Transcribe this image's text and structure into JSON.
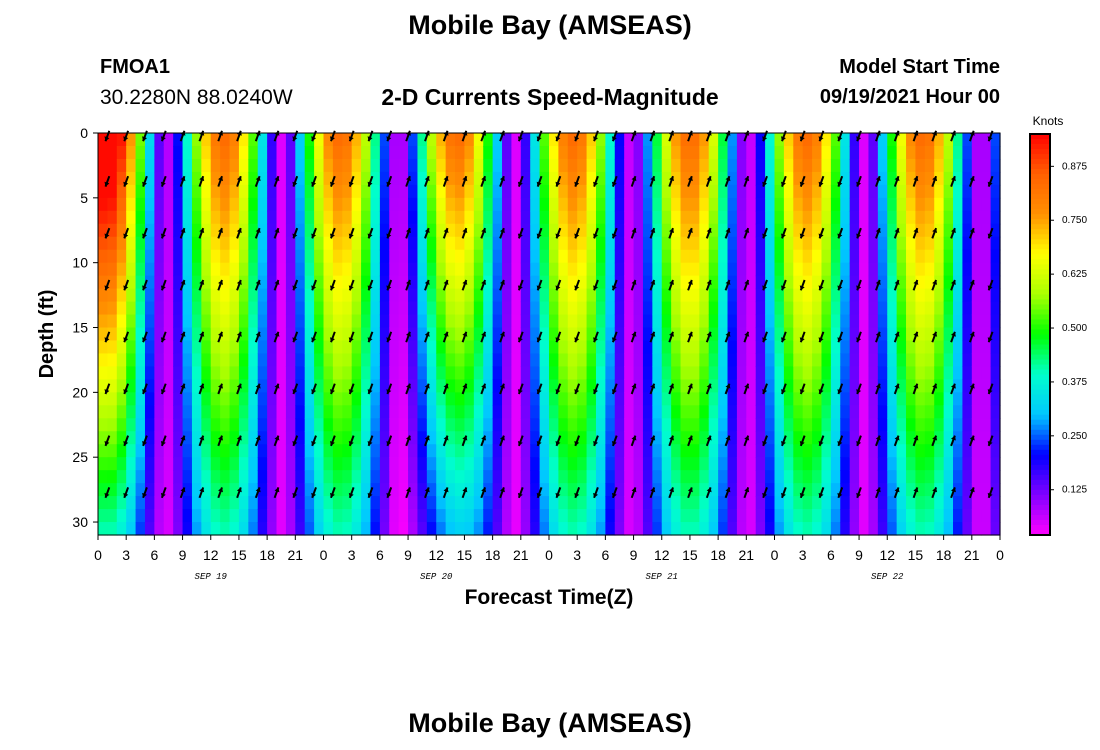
{
  "header": {
    "title": "Mobile Bay (AMSEAS)",
    "station_id": "FMOA1",
    "station_location": "30.2280N  88.0240W",
    "subtitle": "2-D Currents Speed-Magnitude",
    "model_start_label": "Model Start Time",
    "model_start_value": "09/19/2021 Hour 00"
  },
  "footer": {
    "title": "Mobile Bay (AMSEAS)"
  },
  "chart_data": {
    "type": "heatmap",
    "title": "2-D Currents Speed-Magnitude",
    "xlabel": "Forecast Time(Z)",
    "ylabel": "Depth (ft)",
    "x_ticks": [
      "0",
      "3",
      "6",
      "9",
      "12",
      "15",
      "18",
      "21",
      "0",
      "3",
      "6",
      "9",
      "12",
      "15",
      "18",
      "21",
      "0",
      "3",
      "6",
      "9",
      "12",
      "15",
      "18",
      "21",
      "0",
      "3",
      "6",
      "9",
      "12",
      "15",
      "18",
      "21",
      "0"
    ],
    "x_range_hours": [
      0,
      96
    ],
    "date_labels": [
      {
        "label": "SEP 19",
        "hour": 12
      },
      {
        "label": "SEP 20",
        "hour": 36
      },
      {
        "label": "SEP 21",
        "hour": 60
      },
      {
        "label": "SEP 22",
        "hour": 84
      }
    ],
    "y_ticks": [
      0,
      5,
      10,
      15,
      20,
      25,
      30
    ],
    "ylim": [
      0,
      31
    ],
    "y_inverted": true,
    "colorbar": {
      "title": "Knots",
      "range": [
        0.02,
        0.95
      ],
      "ticks": [
        "0.875",
        "0.750",
        "0.625",
        "0.500",
        "0.375",
        "0.250",
        "0.125"
      ],
      "tick_values": [
        0.875,
        0.75,
        0.625,
        0.5,
        0.375,
        0.25,
        0.125
      ],
      "colormap": [
        "#ff00ff",
        "#8000ff",
        "#0000ff",
        "#00c8ff",
        "#00ffcc",
        "#00ff00",
        "#aaff00",
        "#ffff00",
        "#ff9000",
        "#ff6000",
        "#ff0000"
      ]
    },
    "vector_depths_ft": [
      0,
      3.5,
      7.5,
      11.5,
      15.5,
      19.5,
      23.5,
      27.5
    ],
    "vector_interval_hours": 2
  }
}
